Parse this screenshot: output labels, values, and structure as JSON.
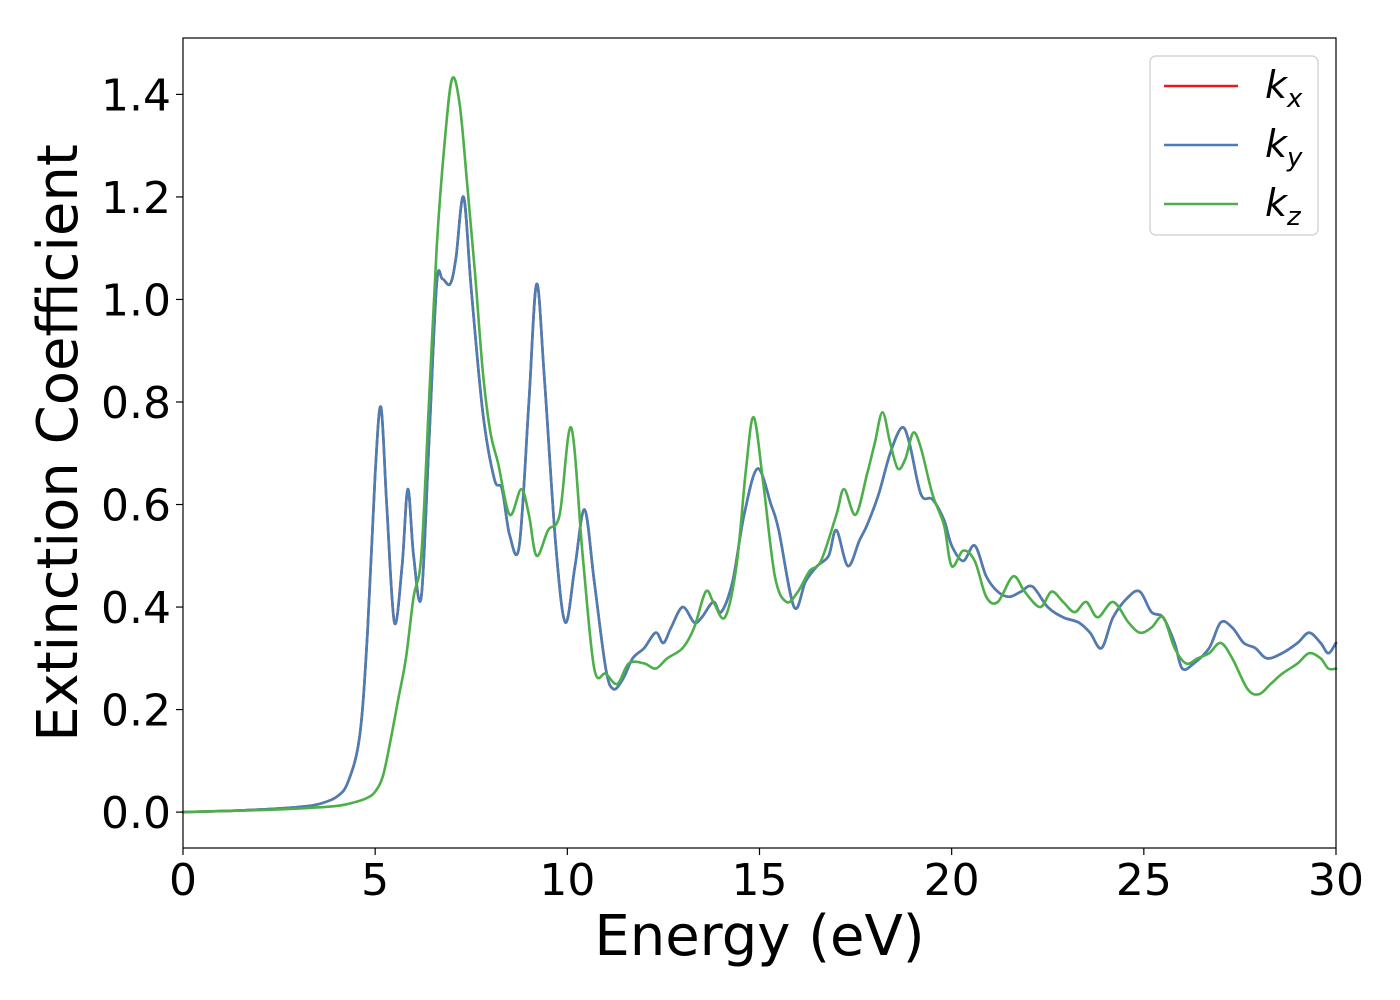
{
  "chart_data": {
    "type": "line",
    "title": "",
    "xlabel": "Energy (eV)",
    "ylabel": "Extinction Coefficient",
    "xlim": [
      0,
      30
    ],
    "ylim": [
      -0.07,
      1.51
    ],
    "xticks": [
      0,
      5,
      10,
      15,
      20,
      25,
      30
    ],
    "xtick_labels": [
      "0",
      "5",
      "10",
      "15",
      "20",
      "25",
      "30"
    ],
    "yticks": [
      0.0,
      0.2,
      0.4,
      0.6,
      0.8,
      1.0,
      1.2,
      1.4
    ],
    "ytick_labels": [
      "0.0",
      "0.2",
      "0.4",
      "0.6",
      "0.8",
      "1.0",
      "1.2",
      "1.4"
    ],
    "grid": false,
    "legend_position": "top-right",
    "series": [
      {
        "name": "k_x",
        "legend_main": "k",
        "legend_sub": "x",
        "color": "#e41a1c",
        "x": [
          0,
          1,
          2,
          3,
          3.5,
          4,
          4.3,
          4.6,
          4.8,
          5.0,
          5.15,
          5.3,
          5.5,
          5.7,
          5.85,
          6.0,
          6.2,
          6.4,
          6.6,
          6.75,
          6.95,
          7.1,
          7.3,
          7.5,
          7.8,
          8.1,
          8.3,
          8.5,
          8.75,
          9.0,
          9.2,
          9.4,
          9.7,
          9.95,
          10.2,
          10.45,
          10.7,
          11.0,
          11.2,
          11.45,
          11.7,
          12.0,
          12.3,
          12.5,
          12.7,
          13.0,
          13.3,
          13.5,
          13.8,
          14.0,
          14.3,
          14.6,
          14.95,
          15.3,
          15.5,
          15.9,
          16.2,
          16.5,
          16.8,
          17.0,
          17.3,
          17.6,
          17.8,
          18.1,
          18.4,
          18.7,
          18.9,
          19.2,
          19.5,
          19.8,
          20.0,
          20.3,
          20.6,
          20.9,
          21.2,
          21.5,
          21.8,
          22.1,
          22.5,
          22.9,
          23.3,
          23.6,
          23.9,
          24.2,
          24.6,
          24.9,
          25.2,
          25.5,
          25.8,
          26.0,
          26.3,
          26.7,
          27.0,
          27.3,
          27.6,
          27.9,
          28.2,
          28.6,
          29.0,
          29.3,
          29.6,
          29.8,
          30.0
        ],
        "y": [
          0.0,
          0.002,
          0.005,
          0.01,
          0.015,
          0.03,
          0.06,
          0.15,
          0.35,
          0.66,
          0.79,
          0.6,
          0.37,
          0.48,
          0.63,
          0.5,
          0.42,
          0.72,
          1.03,
          1.04,
          1.03,
          1.08,
          1.2,
          1.02,
          0.78,
          0.65,
          0.63,
          0.54,
          0.52,
          0.8,
          1.03,
          0.85,
          0.52,
          0.37,
          0.48,
          0.59,
          0.45,
          0.28,
          0.24,
          0.26,
          0.3,
          0.32,
          0.35,
          0.33,
          0.36,
          0.4,
          0.37,
          0.38,
          0.41,
          0.39,
          0.45,
          0.58,
          0.67,
          0.6,
          0.55,
          0.4,
          0.45,
          0.48,
          0.5,
          0.55,
          0.48,
          0.53,
          0.56,
          0.62,
          0.7,
          0.75,
          0.72,
          0.62,
          0.61,
          0.57,
          0.52,
          0.49,
          0.52,
          0.46,
          0.43,
          0.42,
          0.43,
          0.44,
          0.4,
          0.38,
          0.37,
          0.35,
          0.32,
          0.38,
          0.42,
          0.43,
          0.39,
          0.38,
          0.33,
          0.28,
          0.29,
          0.32,
          0.37,
          0.36,
          0.33,
          0.32,
          0.3,
          0.31,
          0.33,
          0.35,
          0.33,
          0.31,
          0.33
        ]
      },
      {
        "name": "k_y",
        "legend_main": "k",
        "legend_sub": "y",
        "color": "#4a7fb5",
        "x": [
          0,
          1,
          2,
          3,
          3.5,
          4,
          4.3,
          4.6,
          4.8,
          5.0,
          5.15,
          5.3,
          5.5,
          5.7,
          5.85,
          6.0,
          6.2,
          6.4,
          6.6,
          6.75,
          6.95,
          7.1,
          7.3,
          7.5,
          7.8,
          8.1,
          8.3,
          8.5,
          8.75,
          9.0,
          9.2,
          9.4,
          9.7,
          9.95,
          10.2,
          10.45,
          10.7,
          11.0,
          11.2,
          11.45,
          11.7,
          12.0,
          12.3,
          12.5,
          12.7,
          13.0,
          13.3,
          13.5,
          13.8,
          14.0,
          14.3,
          14.6,
          14.95,
          15.3,
          15.5,
          15.9,
          16.2,
          16.5,
          16.8,
          17.0,
          17.3,
          17.6,
          17.8,
          18.1,
          18.4,
          18.7,
          18.9,
          19.2,
          19.5,
          19.8,
          20.0,
          20.3,
          20.6,
          20.9,
          21.2,
          21.5,
          21.8,
          22.1,
          22.5,
          22.9,
          23.3,
          23.6,
          23.9,
          24.2,
          24.6,
          24.9,
          25.2,
          25.5,
          25.8,
          26.0,
          26.3,
          26.7,
          27.0,
          27.3,
          27.6,
          27.9,
          28.2,
          28.6,
          29.0,
          29.3,
          29.6,
          29.8,
          30.0
        ],
        "y": [
          0.0,
          0.002,
          0.005,
          0.01,
          0.015,
          0.03,
          0.06,
          0.15,
          0.35,
          0.66,
          0.79,
          0.6,
          0.37,
          0.48,
          0.63,
          0.5,
          0.42,
          0.72,
          1.03,
          1.04,
          1.03,
          1.08,
          1.2,
          1.02,
          0.78,
          0.65,
          0.63,
          0.54,
          0.52,
          0.8,
          1.03,
          0.85,
          0.52,
          0.37,
          0.48,
          0.59,
          0.45,
          0.28,
          0.24,
          0.26,
          0.3,
          0.32,
          0.35,
          0.33,
          0.36,
          0.4,
          0.37,
          0.38,
          0.41,
          0.39,
          0.45,
          0.58,
          0.67,
          0.6,
          0.55,
          0.4,
          0.45,
          0.48,
          0.5,
          0.55,
          0.48,
          0.53,
          0.56,
          0.62,
          0.7,
          0.75,
          0.72,
          0.62,
          0.61,
          0.57,
          0.52,
          0.49,
          0.52,
          0.46,
          0.43,
          0.42,
          0.43,
          0.44,
          0.4,
          0.38,
          0.37,
          0.35,
          0.32,
          0.38,
          0.42,
          0.43,
          0.39,
          0.38,
          0.33,
          0.28,
          0.29,
          0.32,
          0.37,
          0.36,
          0.33,
          0.32,
          0.3,
          0.31,
          0.33,
          0.35,
          0.33,
          0.31,
          0.33
        ]
      },
      {
        "name": "k_z",
        "legend_main": "k",
        "legend_sub": "z",
        "color": "#4daf4a",
        "x": [
          0,
          1,
          2,
          3,
          4,
          4.5,
          4.8,
          5.0,
          5.2,
          5.4,
          5.6,
          5.8,
          6.0,
          6.2,
          6.4,
          6.6,
          6.8,
          7.0,
          7.2,
          7.4,
          7.6,
          7.8,
          8.0,
          8.2,
          8.5,
          8.8,
          9.0,
          9.2,
          9.5,
          9.8,
          10.1,
          10.4,
          10.7,
          11.0,
          11.3,
          11.6,
          12.0,
          12.3,
          12.6,
          13.0,
          13.3,
          13.6,
          13.8,
          14.1,
          14.4,
          14.65,
          14.85,
          15.1,
          15.4,
          15.7,
          16.0,
          16.3,
          16.6,
          17.0,
          17.2,
          17.5,
          17.8,
          18.0,
          18.2,
          18.4,
          18.6,
          18.8,
          19.0,
          19.2,
          19.5,
          19.8,
          20.0,
          20.3,
          20.6,
          20.9,
          21.2,
          21.6,
          21.9,
          22.3,
          22.6,
          22.9,
          23.2,
          23.5,
          23.8,
          24.2,
          24.6,
          24.9,
          25.2,
          25.5,
          25.8,
          26.1,
          26.4,
          26.7,
          27.0,
          27.3,
          27.7,
          28.0,
          28.3,
          28.6,
          29.0,
          29.3,
          29.6,
          29.8,
          30.0
        ],
        "y": [
          0.0,
          0.002,
          0.004,
          0.007,
          0.012,
          0.02,
          0.028,
          0.04,
          0.07,
          0.14,
          0.22,
          0.3,
          0.42,
          0.5,
          0.8,
          1.1,
          1.3,
          1.43,
          1.38,
          1.22,
          1.05,
          0.86,
          0.74,
          0.68,
          0.58,
          0.63,
          0.58,
          0.5,
          0.55,
          0.58,
          0.75,
          0.5,
          0.28,
          0.27,
          0.25,
          0.29,
          0.29,
          0.28,
          0.3,
          0.32,
          0.36,
          0.43,
          0.41,
          0.38,
          0.48,
          0.67,
          0.77,
          0.64,
          0.46,
          0.41,
          0.43,
          0.47,
          0.49,
          0.58,
          0.63,
          0.58,
          0.66,
          0.72,
          0.78,
          0.72,
          0.67,
          0.69,
          0.74,
          0.71,
          0.62,
          0.56,
          0.48,
          0.51,
          0.49,
          0.42,
          0.41,
          0.46,
          0.43,
          0.4,
          0.43,
          0.41,
          0.39,
          0.41,
          0.38,
          0.41,
          0.37,
          0.35,
          0.36,
          0.38,
          0.32,
          0.29,
          0.3,
          0.31,
          0.33,
          0.3,
          0.24,
          0.23,
          0.25,
          0.27,
          0.29,
          0.31,
          0.3,
          0.28,
          0.28
        ]
      }
    ]
  }
}
